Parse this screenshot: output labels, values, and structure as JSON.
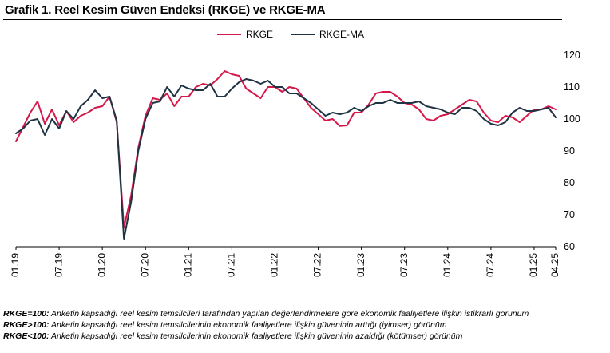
{
  "title": "Grafik 1. Reel Kesim Güven Endeksi (RKGE) ve RKGE-MA",
  "notes": [
    {
      "key": "RKGE=100:",
      "text": " Anketin kapsadığı reel kesim temsilcileri tarafından yapılan değerlendirmelere göre ekonomik faaliyetlere ilişkin istikrarlı görünüm"
    },
    {
      "key": "RKGE>100:",
      "text": " Anketin kapsadığı reel kesim temsilcilerinin ekonomik faaliyetlere ilişkin güveninin arttığı (iyimser) görünüm"
    },
    {
      "key": "RKGE<100:",
      "text": " Anketin kapsadığı reel kesim temsilcilerinin ekonomik faaliyetlere ilişkin güveninin azaldığı (kötümser) görünüm"
    }
  ],
  "colors": {
    "RKGE": "#d5174a",
    "RKGE-MA": "#1f3344",
    "axis": "#000000",
    "grid": "#cccccc"
  },
  "chart_data": {
    "type": "line",
    "title": "Grafik 1. Reel Kesim Güven Endeksi (RKGE) ve RKGE-MA",
    "xlabel": "",
    "ylabel": "",
    "ylim": [
      60,
      120
    ],
    "yticks": [
      60,
      70,
      80,
      90,
      100,
      110,
      120
    ],
    "y_axis_position": "right",
    "legend_position": "top-center",
    "grid": false,
    "x_tick_labels": [
      "01.19",
      "07.19",
      "01.20",
      "07.20",
      "01.21",
      "07.21",
      "01.22",
      "07.22",
      "01.23",
      "07.23",
      "01.24",
      "07.24",
      "01.25",
      "04.25"
    ],
    "x_tick_indices": [
      0,
      6,
      12,
      18,
      24,
      30,
      36,
      42,
      48,
      54,
      60,
      66,
      72,
      75
    ],
    "x": [
      "01.19",
      "02.19",
      "03.19",
      "04.19",
      "05.19",
      "06.19",
      "07.19",
      "08.19",
      "09.19",
      "10.19",
      "11.19",
      "12.19",
      "01.20",
      "02.20",
      "03.20",
      "04.20",
      "05.20",
      "06.20",
      "07.20",
      "08.20",
      "09.20",
      "10.20",
      "11.20",
      "12.20",
      "01.21",
      "02.21",
      "03.21",
      "04.21",
      "05.21",
      "06.21",
      "07.21",
      "08.21",
      "09.21",
      "10.21",
      "11.21",
      "12.21",
      "01.22",
      "02.22",
      "03.22",
      "04.22",
      "05.22",
      "06.22",
      "07.22",
      "08.22",
      "09.22",
      "10.22",
      "11.22",
      "12.22",
      "01.23",
      "02.23",
      "03.23",
      "04.23",
      "05.23",
      "06.23",
      "07.23",
      "08.23",
      "09.23",
      "10.23",
      "11.23",
      "12.23",
      "01.24",
      "02.24",
      "03.24",
      "04.24",
      "05.24",
      "06.24",
      "07.24",
      "08.24",
      "09.24",
      "10.24",
      "11.24",
      "12.24",
      "01.25",
      "02.25",
      "03.25",
      "04.25"
    ],
    "series": [
      {
        "name": "RKGE",
        "values": [
          93.0,
          97.5,
          102.0,
          105.5,
          98.5,
          103.0,
          98.0,
          102.5,
          99.0,
          101.0,
          102.0,
          103.5,
          104.0,
          107.0,
          99.0,
          66.0,
          76.0,
          91.0,
          101.0,
          106.5,
          106.0,
          108.0,
          104.0,
          107.0,
          107.0,
          110.0,
          111.0,
          110.5,
          112.5,
          115.0,
          114.0,
          113.5,
          109.5,
          108.0,
          106.5,
          110.0,
          110.0,
          108.5,
          110.0,
          109.5,
          106.5,
          103.5,
          101.5,
          99.5,
          100.0,
          97.8,
          98.0,
          102.0,
          102.0,
          104.5,
          108.0,
          108.5,
          108.5,
          107.0,
          105.0,
          104.5,
          103.0,
          100.0,
          99.5,
          101.0,
          101.5,
          103.0,
          104.5,
          106.0,
          105.5,
          102.0,
          99.5,
          99.0,
          101.0,
          100.5,
          99.0,
          101.0,
          103.0,
          103.0,
          104.0,
          103.0
        ]
      },
      {
        "name": "RKGE-MA",
        "values": [
          95.5,
          97.0,
          99.5,
          100.0,
          95.0,
          100.0,
          97.0,
          102.5,
          100.0,
          104.0,
          106.0,
          109.0,
          106.5,
          107.0,
          99.5,
          62.5,
          74.0,
          90.0,
          100.0,
          105.0,
          105.5,
          110.0,
          107.0,
          110.5,
          109.5,
          109.0,
          109.0,
          111.0,
          107.0,
          107.0,
          109.5,
          111.5,
          112.5,
          112.0,
          111.0,
          112.0,
          110.0,
          110.0,
          108.0,
          108.0,
          106.5,
          105.0,
          103.0,
          101.0,
          102.0,
          101.5,
          102.0,
          103.5,
          102.5,
          104.0,
          105.0,
          105.0,
          106.0,
          105.0,
          105.0,
          105.0,
          105.5,
          104.0,
          103.5,
          103.0,
          102.0,
          101.5,
          103.5,
          103.5,
          102.5,
          100.0,
          98.5,
          98.0,
          99.0,
          102.0,
          103.5,
          102.5,
          102.5,
          103.0,
          103.5,
          100.5
        ]
      }
    ]
  }
}
